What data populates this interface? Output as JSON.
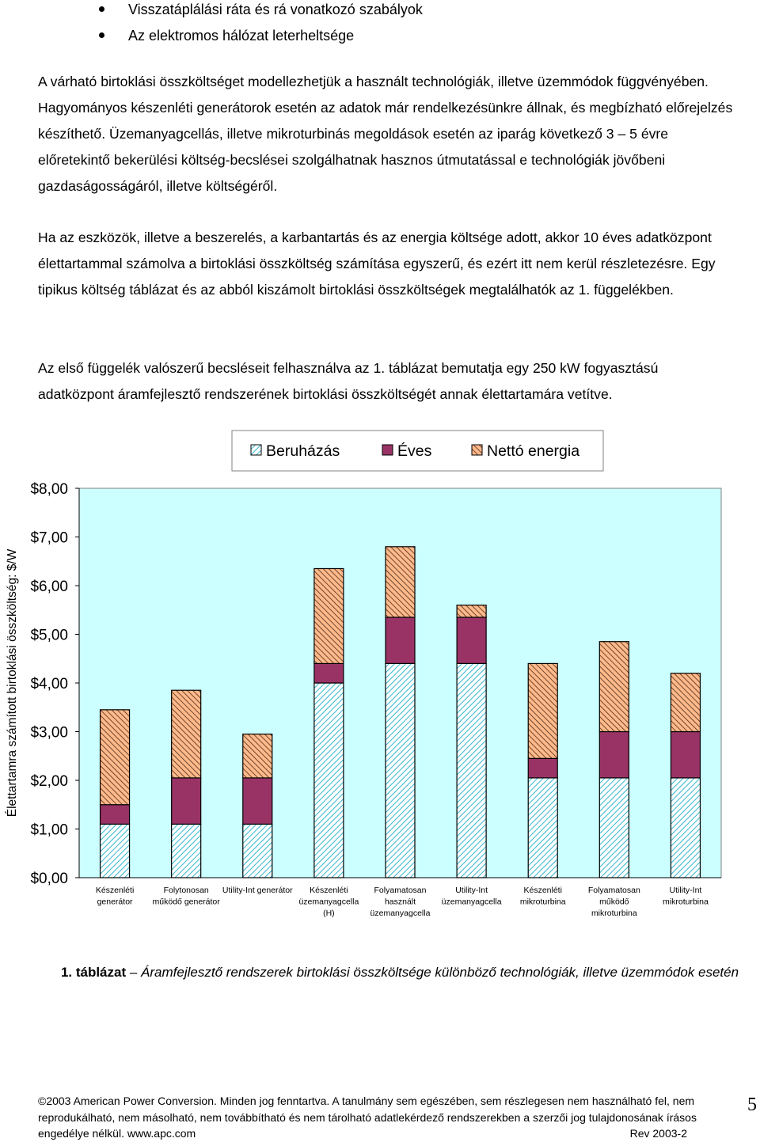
{
  "bullets": [
    "Visszatáplálási ráta és rá vonatkozó szabályok",
    "Az elektromos hálózat leterheltsége"
  ],
  "paragraphs": [
    "A várható birtoklási összköltséget modellezhetjük a használt technológiák, illetve üzemmódok függvényében. Hagyományos készenléti generátorok esetén az adatok már rendelkezésünkre állnak, és megbízható előrejelzés készíthető. Üzemanyagcellás, illetve mikroturbinás megoldások esetén az iparág következő 3 – 5 évre előretekintő bekerülési költség-becslései szolgálhatnak hasznos útmutatással e technológiák jövőbeni gazdaságosságáról, illetve költségéről.",
    "Ha az eszközök, illetve a beszerelés, a karbantartás és az energia költsége adott, akkor 10 éves adatközpont élettartammal számolva a birtoklási összköltség számítása egyszerű, és ezért itt nem kerül részletezésre. Egy tipikus költség táblázat és az abból kiszámolt birtoklási összköltségek megtalálhatók az 1. függelékben.",
    "Az első függelék valószerű becsléseit felhasználva az 1. táblázat bemutatja egy 250 kW fogyasztású adatközpont áramfejlesztő rendszerének birtoklási összköltségét annak élettartamára vetítve."
  ],
  "chart_data": {
    "type": "bar",
    "stacked": true,
    "ylabel": "Élettartamra számított birtoklási összköltség: $/W",
    "ylim": [
      0,
      8
    ],
    "yticks": [
      "$0,00",
      "$1,00",
      "$2,00",
      "$3,00",
      "$4,00",
      "$5,00",
      "$6,00",
      "$7,00",
      "$8,00"
    ],
    "legend_position": "top",
    "categories": [
      [
        "Készenléti",
        "generátor"
      ],
      [
        "Folytonosan",
        "működő generátor"
      ],
      [
        "Utility-Int generátor"
      ],
      [
        "Készenléti",
        "üzemanyagcella",
        "(H)"
      ],
      [
        "Folyamatosan",
        "használt",
        "üzemanyagcella"
      ],
      [
        "Utility-Int",
        "üzemanyagcella"
      ],
      [
        "Készenléti",
        "mikroturbina"
      ],
      [
        "Folyamatosan",
        "működő",
        "mikroturbina"
      ],
      [
        "Utility-Int",
        "mikroturbina"
      ]
    ],
    "series": [
      {
        "name": "Beruházás",
        "color": "#99ccff",
        "pattern": "light-diagonal",
        "values": [
          1.1,
          1.1,
          1.1,
          4.0,
          4.4,
          4.4,
          2.05,
          2.05,
          2.05
        ]
      },
      {
        "name": "Éves",
        "color": "#993366",
        "pattern": "solid",
        "values": [
          0.4,
          0.95,
          0.95,
          0.4,
          0.95,
          0.95,
          0.4,
          0.95,
          0.95
        ]
      },
      {
        "name": "Nettó energia",
        "color": "#ff9966",
        "pattern": "dark-diagonal",
        "values": [
          1.95,
          1.8,
          0.9,
          1.95,
          1.45,
          0.25,
          1.95,
          1.85,
          1.2
        ]
      }
    ]
  },
  "caption": {
    "label": "1. táblázat",
    "dash": " – ",
    "text": "Áramfejlesztő rendszerek birtoklási összköltsége különböző technológiák, illetve üzemmódok esetén"
  },
  "footer": {
    "line1": "2003 American Power Conversion. Minden jog fenntartva. A tanulmány sem egészében, sem részlegesen nem használható fel, nem",
    "line2": "reprodukálható, nem másolható, nem továbbítható és nem tárolható adatlekérdező rendszerekben a szerzői jog tulajdonosának írásos",
    "line3": "engedélye nélkül. www.apc.com",
    "rev": "Rev 2003-2",
    "page_number": "5"
  }
}
